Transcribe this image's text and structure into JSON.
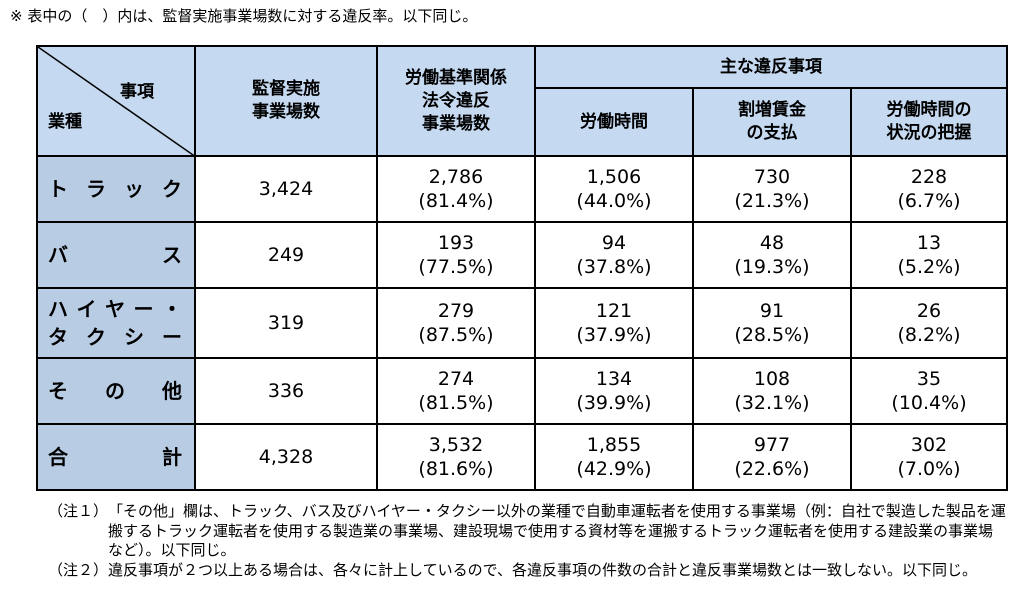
{
  "top_note": "※ 表中の（　）内は、監督実施事業場数に対する違反率。以下同じ。",
  "header": {
    "diag_top": "事項",
    "diag_bottom": "業種",
    "inspected": [
      "監督実施",
      "事業場数"
    ],
    "violations": [
      "労働基準関係",
      "法令違反",
      "事業場数"
    ],
    "main_violations": "主な違反事項",
    "sub": [
      [
        "労働時間"
      ],
      [
        "割増賃金",
        "の支払"
      ],
      [
        "労働時間の",
        "状況の把握"
      ]
    ]
  },
  "rows": [
    {
      "label_chars": [
        "ト",
        "ラ",
        "ッ",
        "ク"
      ],
      "inspected": "3,424",
      "violations": [
        "2,786",
        "(81.4%)"
      ],
      "hours": [
        "1,506",
        "(44.0%)"
      ],
      "wages": [
        "730",
        "(21.3%)"
      ],
      "grasp": [
        "228",
        "(6.7%)"
      ]
    },
    {
      "label_chars": [
        "バ",
        "ス"
      ],
      "inspected": "249",
      "violations": [
        "193",
        "(77.5%)"
      ],
      "hours": [
        "94",
        "(37.8%)"
      ],
      "wages": [
        "48",
        "(19.3%)"
      ],
      "grasp": [
        "13",
        "(5.2%)"
      ]
    },
    {
      "label_lines": [
        [
          "ハ",
          "イ",
          "ヤ",
          "ー",
          "・"
        ],
        [
          "タ",
          "ク",
          "シ",
          "ー"
        ]
      ],
      "inspected": "319",
      "violations": [
        "279",
        "(87.5%)"
      ],
      "hours": [
        "121",
        "(37.9%)"
      ],
      "wages": [
        "91",
        "(28.5%)"
      ],
      "grasp": [
        "26",
        "(8.2%)"
      ]
    },
    {
      "label_chars": [
        "そ",
        "の",
        "他"
      ],
      "inspected": "336",
      "violations": [
        "274",
        "(81.5%)"
      ],
      "hours": [
        "134",
        "(39.9%)"
      ],
      "wages": [
        "108",
        "(32.1%)"
      ],
      "grasp": [
        "35",
        "(10.4%)"
      ]
    },
    {
      "label_chars": [
        "合",
        "計"
      ],
      "inspected": "4,328",
      "violations": [
        "3,532",
        "(81.6%)"
      ],
      "hours": [
        "1,855",
        "(42.9%)"
      ],
      "wages": [
        "977",
        "(22.6%)"
      ],
      "grasp": [
        "302",
        "(7.0%)"
      ]
    }
  ],
  "notes": [
    {
      "label": "（注１）",
      "text": "「その他」欄は、トラック、バス及びハイヤー・タクシー以外の業種で自動車運転者を使用する事業場（例：自社で製造した製品を運搬するトラック運転者を使用する製造業の事業場、建設現場で使用する資材等を運搬するトラック運転者を使用する建設業の事業場など）。以下同じ。"
    },
    {
      "label": "（注２）",
      "text": "違反事項が２つ以上ある場合は、各々に計上しているので、各違反事項の件数の合計と違反事業場数とは一致しない。以下同じ。"
    }
  ]
}
